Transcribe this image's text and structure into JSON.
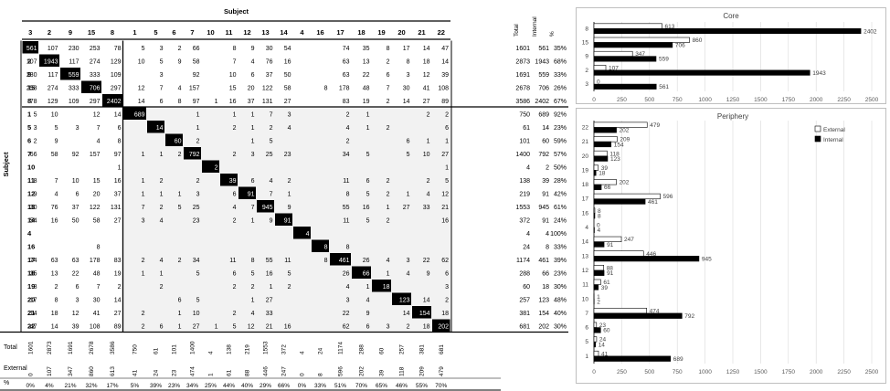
{
  "matrix": {
    "title": "Subject",
    "row_axis_label": "Subject",
    "columns": [
      "3",
      "2",
      "9",
      "15",
      "8",
      "1",
      "5",
      "6",
      "7",
      "10",
      "11",
      "12",
      "13",
      "14",
      "4",
      "16",
      "17",
      "18",
      "19",
      "20",
      "21",
      "22"
    ],
    "rows": [
      "3",
      "2",
      "9",
      "15",
      "8",
      "1",
      "5",
      "6",
      "7",
      "10",
      "11",
      "12",
      "13",
      "14",
      "4",
      "16",
      "17",
      "18",
      "19",
      "20",
      "21",
      "22"
    ],
    "side_headers": [
      "Total",
      "Internal",
      "%"
    ],
    "cells": [
      [
        "561",
        "107",
        "230",
        "253",
        "78",
        "5",
        "3",
        "2",
        "66",
        "",
        "8",
        "9",
        "30",
        "54",
        "",
        "",
        "74",
        "35",
        "8",
        "17",
        "14",
        "47"
      ],
      [
        "107",
        "1943",
        "117",
        "274",
        "129",
        "10",
        "5",
        "9",
        "58",
        "",
        "7",
        "4",
        "76",
        "16",
        "",
        "",
        "63",
        "13",
        "2",
        "8",
        "18",
        "14"
      ],
      [
        "230",
        "117",
        "559",
        "333",
        "109",
        "",
        "3",
        "",
        "92",
        "",
        "10",
        "6",
        "37",
        "50",
        "",
        "",
        "63",
        "22",
        "6",
        "3",
        "12",
        "39"
      ],
      [
        "253",
        "274",
        "333",
        "706",
        "297",
        "12",
        "7",
        "4",
        "157",
        "",
        "15",
        "20",
        "122",
        "58",
        "",
        "8",
        "178",
        "48",
        "7",
        "30",
        "41",
        "108"
      ],
      [
        "78",
        "129",
        "109",
        "297",
        "2402",
        "14",
        "6",
        "8",
        "97",
        "1",
        "16",
        "37",
        "131",
        "27",
        "",
        "",
        "83",
        "19",
        "2",
        "14",
        "27",
        "89"
      ],
      [
        "5",
        "10",
        "",
        "12",
        "14",
        "689",
        "",
        "",
        "1",
        "",
        "1",
        "1",
        "7",
        "3",
        "",
        "",
        "2",
        "1",
        "",
        "",
        "2",
        "2"
      ],
      [
        "3",
        "5",
        "3",
        "7",
        "6",
        "",
        "14",
        "",
        "1",
        "",
        "2",
        "1",
        "2",
        "4",
        "",
        "",
        "4",
        "1",
        "2",
        "",
        "",
        "6"
      ],
      [
        "2",
        "9",
        "",
        "4",
        "8",
        "",
        "",
        "60",
        "2",
        "",
        "",
        "1",
        "5",
        "",
        "",
        "",
        "2",
        "",
        "",
        "6",
        "1",
        "1"
      ],
      [
        "66",
        "58",
        "92",
        "157",
        "97",
        "1",
        "1",
        "2",
        "792",
        "",
        "2",
        "3",
        "25",
        "23",
        "",
        "",
        "34",
        "5",
        "",
        "5",
        "10",
        "27"
      ],
      [
        "",
        "",
        "",
        "",
        "1",
        "",
        "",
        "",
        "",
        "2",
        "",
        "",
        "",
        "",
        "",
        "",
        "",
        "",
        "",
        "",
        "",
        "1"
      ],
      [
        "8",
        "7",
        "10",
        "15",
        "16",
        "1",
        "2",
        "",
        "2",
        "",
        "39",
        "6",
        "4",
        "2",
        "",
        "",
        "11",
        "6",
        "2",
        "",
        "2",
        "5"
      ],
      [
        "9",
        "4",
        "6",
        "20",
        "37",
        "1",
        "1",
        "1",
        "3",
        "",
        "6",
        "91",
        "7",
        "1",
        "",
        "",
        "8",
        "5",
        "2",
        "1",
        "4",
        "12"
      ],
      [
        "30",
        "76",
        "37",
        "122",
        "131",
        "7",
        "2",
        "5",
        "25",
        "",
        "4",
        "7",
        "945",
        "9",
        "",
        "",
        "55",
        "16",
        "1",
        "27",
        "33",
        "21"
      ],
      [
        "54",
        "16",
        "50",
        "58",
        "27",
        "3",
        "4",
        "",
        "23",
        "",
        "2",
        "1",
        "9",
        "91",
        "",
        "",
        "11",
        "5",
        "2",
        "",
        "",
        "16"
      ],
      [
        "",
        "",
        "",
        "",
        "",
        "",
        "",
        "",
        "",
        "",
        "",
        "",
        "",
        "",
        "4",
        "",
        "",
        "",
        "",
        "",
        "",
        ""
      ],
      [
        "",
        "",
        "",
        "8",
        "",
        "",
        "",
        "",
        "",
        "",
        "",
        "",
        "",
        "",
        "",
        "8",
        "8",
        "",
        "",
        "",
        "",
        ""
      ],
      [
        "74",
        "63",
        "63",
        "178",
        "83",
        "2",
        "4",
        "2",
        "34",
        "",
        "11",
        "8",
        "55",
        "11",
        "",
        "8",
        "461",
        "26",
        "4",
        "3",
        "22",
        "62"
      ],
      [
        "35",
        "13",
        "22",
        "48",
        "19",
        "1",
        "1",
        "",
        "5",
        "",
        "6",
        "5",
        "16",
        "5",
        "",
        "",
        "26",
        "66",
        "1",
        "4",
        "9",
        "6"
      ],
      [
        "8",
        "2",
        "6",
        "7",
        "2",
        "",
        "2",
        "",
        "",
        "",
        "2",
        "2",
        "1",
        "2",
        "",
        "",
        "4",
        "1",
        "18",
        "",
        "",
        "3"
      ],
      [
        "17",
        "8",
        "3",
        "30",
        "14",
        "",
        "",
        "6",
        "5",
        "",
        "",
        "1",
        "27",
        "",
        "",
        "",
        "3",
        "4",
        "",
        "123",
        "14",
        "2"
      ],
      [
        "14",
        "18",
        "12",
        "41",
        "27",
        "2",
        "",
        "1",
        "10",
        "",
        "2",
        "4",
        "33",
        "",
        "",
        "",
        "22",
        "9",
        "",
        "14",
        "154",
        "18"
      ],
      [
        "47",
        "14",
        "39",
        "108",
        "89",
        "2",
        "6",
        "1",
        "27",
        "1",
        "5",
        "12",
        "21",
        "16",
        "",
        "",
        "62",
        "6",
        "3",
        "2",
        "18",
        "202"
      ]
    ],
    "row_totals": [
      [
        "1601",
        "561",
        "35%"
      ],
      [
        "2873",
        "1943",
        "68%"
      ],
      [
        "1691",
        "559",
        "33%"
      ],
      [
        "2678",
        "706",
        "26%"
      ],
      [
        "3586",
        "2402",
        "67%"
      ],
      [
        "750",
        "689",
        "92%"
      ],
      [
        "61",
        "14",
        "23%"
      ],
      [
        "101",
        "60",
        "59%"
      ],
      [
        "1400",
        "792",
        "57%"
      ],
      [
        "4",
        "2",
        "50%"
      ],
      [
        "138",
        "39",
        "28%"
      ],
      [
        "219",
        "91",
        "42%"
      ],
      [
        "1553",
        "945",
        "61%"
      ],
      [
        "372",
        "91",
        "24%"
      ],
      [
        "4",
        "4",
        "100%"
      ],
      [
        "24",
        "8",
        "33%"
      ],
      [
        "1174",
        "461",
        "39%"
      ],
      [
        "288",
        "66",
        "23%"
      ],
      [
        "60",
        "18",
        "30%"
      ],
      [
        "257",
        "123",
        "48%"
      ],
      [
        "381",
        "154",
        "40%"
      ],
      [
        "681",
        "202",
        "30%"
      ]
    ],
    "footer_labels": [
      "Total",
      "External",
      "%"
    ],
    "footer_totals": [
      "1601",
      "2873",
      "1691",
      "2678",
      "3586",
      "750",
      "61",
      "101",
      "1400",
      "4",
      "138",
      "219",
      "1553",
      "372",
      "4",
      "24",
      "1174",
      "288",
      "60",
      "257",
      "381",
      "681"
    ],
    "footer_external": [
      "0",
      "107",
      "347",
      "860",
      "613",
      "41",
      "24",
      "23",
      "474",
      "1",
      "61",
      "88",
      "446",
      "247",
      "0",
      "8",
      "596",
      "202",
      "39",
      "118",
      "209",
      "479"
    ],
    "footer_pct": [
      "0%",
      "4%",
      "21%",
      "32%",
      "17%",
      "5%",
      "39%",
      "23%",
      "34%",
      "25%",
      "44%",
      "40%",
      "29%",
      "66%",
      "0%",
      "33%",
      "51%",
      "70%",
      "65%",
      "46%",
      "55%",
      "70%"
    ]
  },
  "chart_data": [
    {
      "type": "bar",
      "orientation": "horizontal",
      "title": "Core",
      "categories": [
        "8",
        "15",
        "9",
        "2",
        "3"
      ],
      "series": [
        {
          "values": [
            613,
            860,
            347,
            107,
            0
          ],
          "color": "#ffffff"
        },
        {
          "values": [
            2402,
            706,
            559,
            1943,
            561
          ],
          "color": "#000000"
        }
      ],
      "value_labels": [
        [
          "613",
          "860",
          "347",
          "107",
          "0"
        ],
        [
          "2402",
          "706",
          "559",
          "1943",
          "561"
        ]
      ],
      "xlim": [
        0,
        2500
      ],
      "xticks": [
        "0",
        "250",
        "500",
        "750",
        "1000",
        "1250",
        "1500",
        "1750",
        "2000",
        "2250",
        "2500"
      ]
    },
    {
      "type": "bar",
      "orientation": "horizontal",
      "title": "Periphery",
      "categories": [
        "22",
        "21",
        "20",
        "19",
        "18",
        "17",
        "16",
        "4",
        "14",
        "13",
        "12",
        "11",
        "10",
        "7",
        "6",
        "5",
        "1"
      ],
      "series": [
        {
          "name": "External",
          "values": [
            479,
            209,
            118,
            39,
            202,
            596,
            8,
            0,
            247,
            446,
            88,
            61,
            1,
            474,
            23,
            24,
            41
          ],
          "color": "#ffffff"
        },
        {
          "name": "Internal",
          "values": [
            202,
            154,
            123,
            18,
            66,
            461,
            8,
            4,
            91,
            945,
            91,
            39,
            2,
            792,
            60,
            14,
            689
          ],
          "color": "#000000"
        }
      ],
      "value_labels": [
        [
          "479",
          "209",
          "118",
          "39",
          "202",
          "596",
          "8",
          "0",
          "247",
          "446",
          "88",
          "61",
          "1",
          "474",
          "23",
          "24",
          "41"
        ],
        [
          "202",
          "154",
          "123",
          "18",
          "66",
          "461",
          "8",
          "4",
          "91",
          "945",
          "91",
          "39",
          "2",
          "792",
          "60",
          "14",
          "689"
        ]
      ],
      "xlim": [
        0,
        2500
      ],
      "xticks": [
        "0",
        "250",
        "500",
        "750",
        "1000",
        "1250",
        "1500",
        "1750",
        "2000",
        "2250",
        "2500"
      ],
      "legend_position": "top-right"
    }
  ]
}
